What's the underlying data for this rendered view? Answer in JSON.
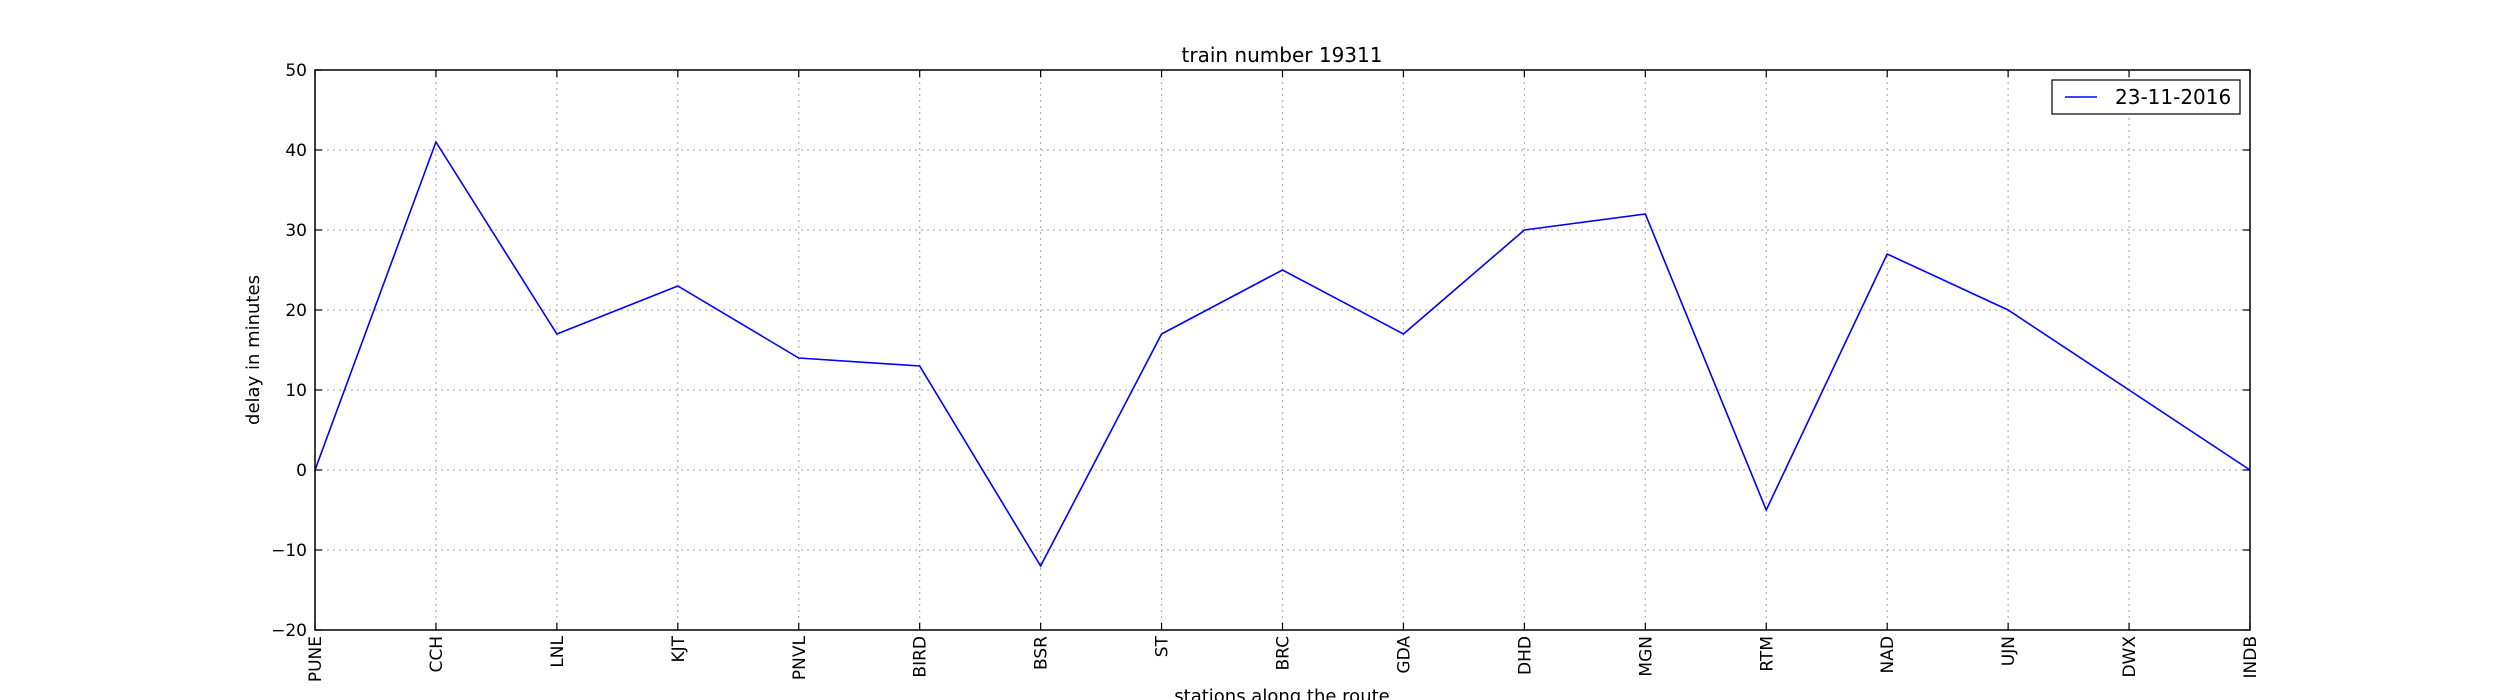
{
  "chart_data": {
    "type": "line",
    "title": "train number 19311",
    "xlabel": "stations along the route",
    "ylabel": "delay in minutes",
    "categories": [
      "PUNE",
      "CCH",
      "LNL",
      "KJT",
      "PNVL",
      "BIRD",
      "BSR",
      "ST",
      "BRC",
      "GDA",
      "DHD",
      "MGN",
      "RTM",
      "NAD",
      "UJN",
      "DWX",
      "INDB"
    ],
    "series": [
      {
        "name": "23-11-2016",
        "color": "#0000ff",
        "values": [
          0,
          41,
          17,
          23,
          14,
          13,
          -12,
          17,
          25,
          17,
          30,
          32,
          -5,
          27,
          20,
          10,
          0
        ]
      }
    ],
    "ylim": [
      -20,
      50
    ],
    "yticks": [
      -20,
      -10,
      0,
      10,
      20,
      30,
      40,
      50
    ],
    "grid": true,
    "legend_position": "top-right"
  }
}
